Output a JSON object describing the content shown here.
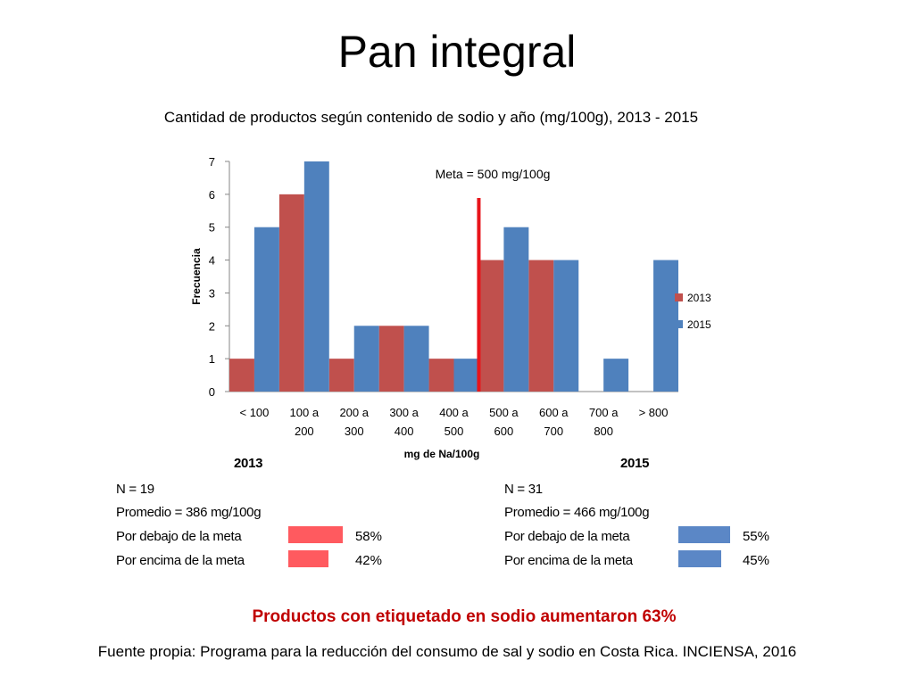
{
  "title": "Pan integral",
  "subtitle": "Cantidad de productos según contenido de sodio y año (mg/100g), 2013 - 2015",
  "colors": {
    "series_2013": "#c0504d",
    "series_2015": "#4f81bd",
    "meta_line": "#e8141b",
    "bar_2013_pct": "#ff5a5f",
    "bar_2015_pct": "#5b87c6",
    "conclusion": "#c00000"
  },
  "chart_data": {
    "type": "bar",
    "ylabel": "Frecuencia",
    "xlabel": "mg de Na/100g",
    "ylim": [
      0,
      7
    ],
    "yticks": [
      "0",
      "1",
      "2",
      "3",
      "4",
      "5",
      "6",
      "7"
    ],
    "categories": [
      [
        "< 100"
      ],
      [
        "100 a",
        "200"
      ],
      [
        "200 a",
        "300"
      ],
      [
        "300 a",
        "400"
      ],
      [
        "400 a",
        "500"
      ],
      [
        "500 a",
        "600"
      ],
      [
        "600 a",
        "700"
      ],
      [
        "700 a",
        "800"
      ],
      [
        "> 800"
      ]
    ],
    "series": [
      {
        "name": "2013",
        "color": "#c0504d",
        "values": [
          1,
          6,
          1,
          2,
          1,
          4,
          4,
          0,
          0
        ]
      },
      {
        "name": "2015",
        "color": "#4f81bd",
        "values": [
          5,
          7,
          2,
          2,
          1,
          5,
          4,
          1,
          4
        ]
      }
    ],
    "annotation": "Meta = 500 mg/100g",
    "meta_value": 500,
    "legend_position": "right"
  },
  "stats": {
    "y2013": {
      "year": "2013",
      "n": "N = 19",
      "promedio": "Promedio = 386 mg/100g",
      "below_label": "Por debajo de la meta",
      "below_pct": "58%",
      "below_value": 0.58,
      "above_label": "Por encima de la meta",
      "above_pct": "42%",
      "above_value": 0.42
    },
    "y2015": {
      "year": "2015",
      "n": "N = 31",
      "promedio": "Promedio = 466 mg/100g",
      "below_label": "Por debajo de la meta",
      "below_pct": "55%",
      "below_value": 0.55,
      "above_label": "Por encima de la meta",
      "above_pct": "45%",
      "above_value": 0.45
    }
  },
  "conclusion": "Productos con etiquetado en sodio aumentaron 63%",
  "source": "Fuente propia: Programa para la reducción del consumo de sal y sodio en Costa Rica. INCIENSA, 2016"
}
